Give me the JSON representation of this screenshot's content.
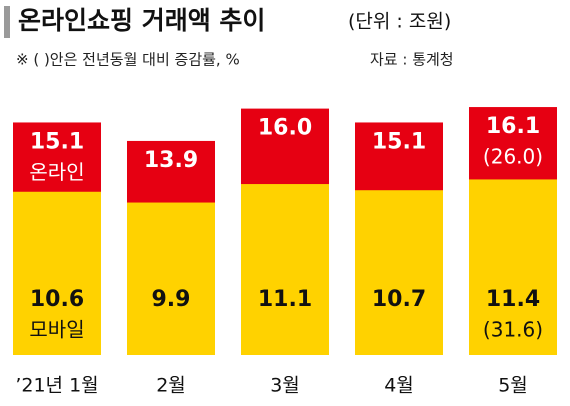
{
  "chart_data": {
    "type": "bar",
    "title": "온라인쇼핑 거래액 추이",
    "unit": "(단위 : 조원)",
    "subtitle": "※ ( )안은 전년동월 대비 증감률, %",
    "source": "자료 : 통계청",
    "categories": [
      "’21년 1월",
      "2월",
      "3월",
      "4월",
      "5월"
    ],
    "series": [
      {
        "name": "온라인",
        "color": "#e60012",
        "text_color": "#ffffff",
        "values": [
          15.1,
          13.9,
          16.0,
          15.1,
          16.1
        ],
        "value_labels": [
          "15.1",
          "13.9",
          "16.0",
          "15.1",
          "16.1"
        ],
        "yoy": [
          null,
          null,
          null,
          null,
          26.0
        ],
        "yoy_labels": [
          null,
          null,
          null,
          null,
          "(26.0)"
        ]
      },
      {
        "name": "모바일",
        "color": "#ffd200",
        "text_color": "#111111",
        "values": [
          10.6,
          9.9,
          11.1,
          10.7,
          11.4
        ],
        "value_labels": [
          "10.6",
          "9.9",
          "11.1",
          "10.7",
          "11.4"
        ],
        "yoy": [
          null,
          null,
          null,
          null,
          31.6
        ],
        "yoy_labels": [
          null,
          null,
          null,
          null,
          "(31.6)"
        ]
      }
    ]
  }
}
